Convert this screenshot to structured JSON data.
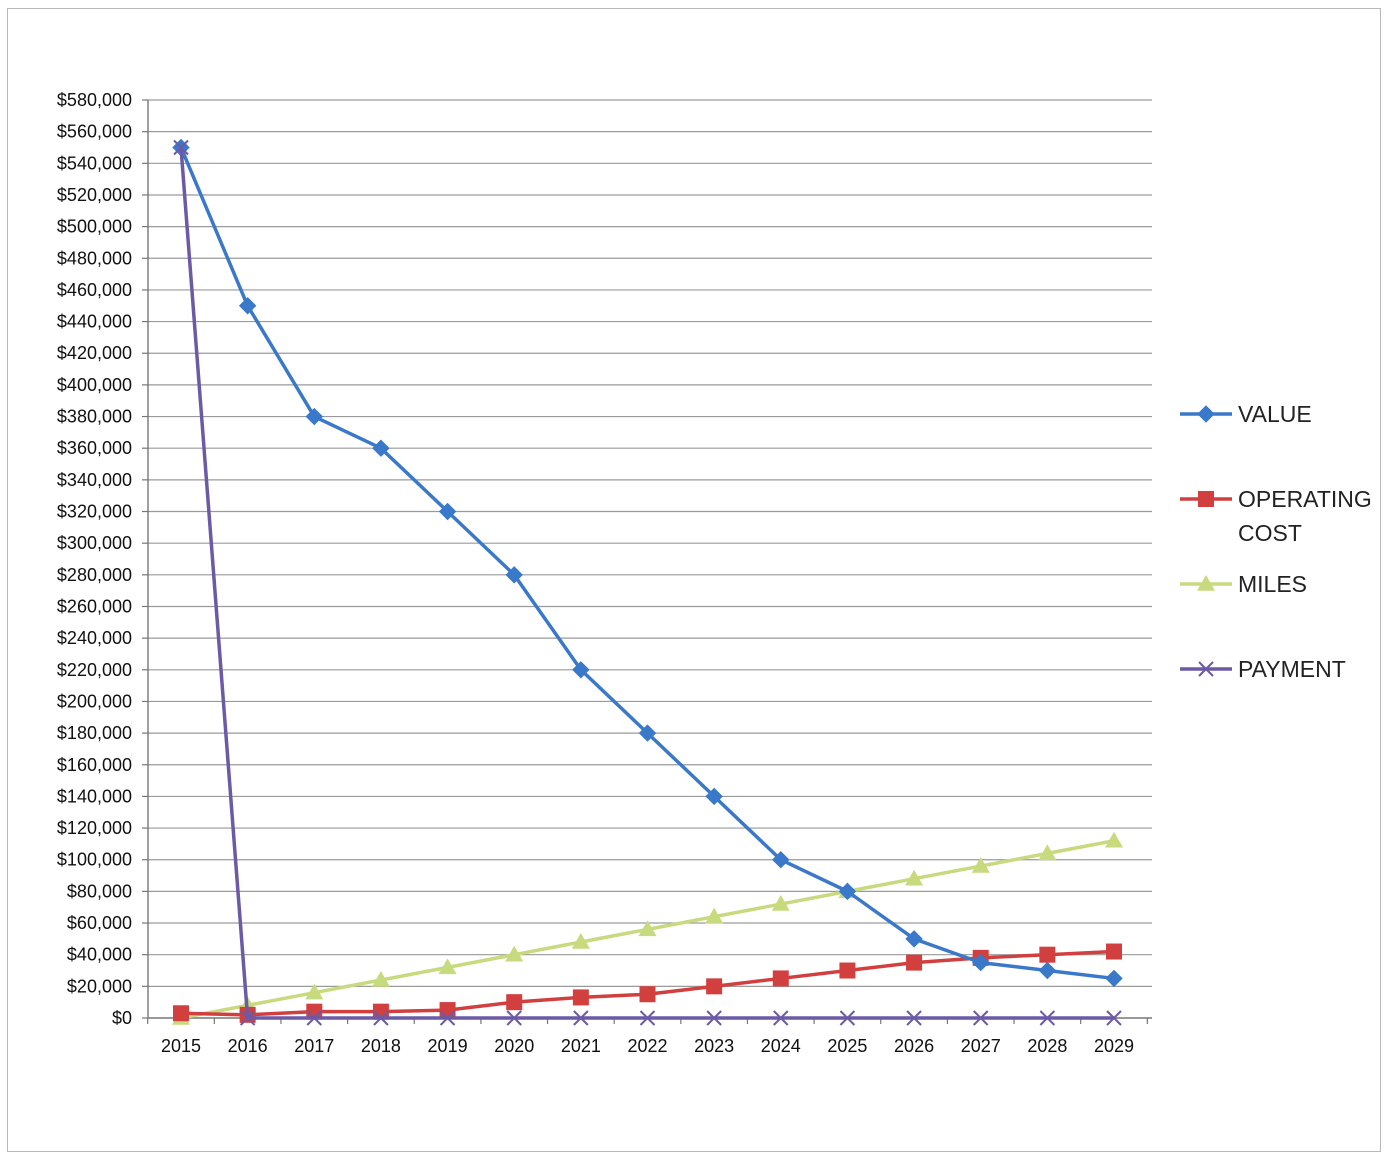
{
  "chart_data": {
    "type": "line",
    "title": "",
    "xlabel": "",
    "ylabel": "",
    "categories": [
      "2015",
      "2016",
      "2017",
      "2018",
      "2019",
      "2020",
      "2021",
      "2022",
      "2023",
      "2024",
      "2025",
      "2026",
      "2027",
      "2028",
      "2029"
    ],
    "ylim": [
      0,
      580000
    ],
    "ytick_step": 20000,
    "ytick_labels": [
      "$0",
      "$20,000",
      "$40,000",
      "$60,000",
      "$80,000",
      "$100,000",
      "$120,000",
      "$140,000",
      "$160,000",
      "$180,000",
      "$200,000",
      "$220,000",
      "$240,000",
      "$260,000",
      "$280,000",
      "$300,000",
      "$320,000",
      "$340,000",
      "$360,000",
      "$380,000",
      "$400,000",
      "$420,000",
      "$440,000",
      "$460,000",
      "$480,000",
      "$500,000",
      "$520,000",
      "$540,000",
      "$560,000",
      "$580,000"
    ],
    "grid": true,
    "legend_position": "right",
    "series": [
      {
        "name": "VALUE",
        "legend_lines": [
          "VALUE"
        ],
        "color": "#3a78c9",
        "marker": "diamond",
        "values": [
          550000,
          450000,
          380000,
          360000,
          320000,
          280000,
          220000,
          180000,
          140000,
          100000,
          80000,
          50000,
          35000,
          30000,
          25000
        ]
      },
      {
        "name": "OPERATING COST",
        "legend_lines": [
          "OPERATING",
          "COST"
        ],
        "color": "#d23f3f",
        "marker": "square",
        "values": [
          3000,
          2000,
          4000,
          4000,
          5000,
          10000,
          13000,
          15000,
          20000,
          25000,
          30000,
          35000,
          38000,
          40000,
          42000
        ]
      },
      {
        "name": "MILES",
        "legend_lines": [
          "MILES"
        ],
        "color": "#c7da7e",
        "marker": "triangle",
        "values": [
          0,
          8000,
          16000,
          24000,
          32000,
          40000,
          48000,
          56000,
          64000,
          72000,
          80000,
          88000,
          96000,
          104000,
          112000
        ]
      },
      {
        "name": "PAYMENT",
        "legend_lines": [
          "PAYMENT"
        ],
        "color": "#6b5aa6",
        "marker": "x",
        "values": [
          550000,
          0,
          0,
          0,
          0,
          0,
          0,
          0,
          0,
          0,
          0,
          0,
          0,
          0,
          0
        ]
      }
    ]
  }
}
